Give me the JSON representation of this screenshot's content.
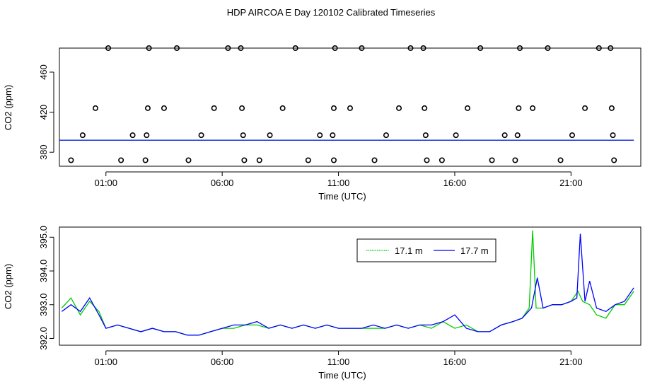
{
  "title": "HDP AIRCOA E  Day 120102  Calibrated Timeseries",
  "chart_data": [
    {
      "type": "scatter",
      "xlabel": "Time (UTC)",
      "ylabel": "CO2 (ppm)",
      "x_ticks": [
        "01:00",
        "06:00",
        "11:00",
        "16:00",
        "21:00"
      ],
      "x_tick_hours": [
        1,
        6,
        11,
        16,
        21
      ],
      "xlim": [
        -1.0,
        24.0
      ],
      "ylim": [
        366,
        484
      ],
      "y_ticks": [
        380,
        420,
        460
      ],
      "cal_points": [
        [
          -0.5,
          372
        ],
        [
          0.0,
          397
        ],
        [
          0.55,
          424
        ],
        [
          1.1,
          484
        ],
        [
          1.65,
          372
        ],
        [
          2.15,
          397
        ],
        [
          2.75,
          397
        ],
        [
          2.8,
          424
        ],
        [
          2.85,
          484
        ],
        [
          2.7,
          372
        ],
        [
          3.5,
          424
        ],
        [
          4.05,
          484
        ],
        [
          4.55,
          372
        ],
        [
          5.1,
          397
        ],
        [
          5.65,
          424
        ],
        [
          6.25,
          484
        ],
        [
          6.8,
          484
        ],
        [
          6.85,
          424
        ],
        [
          6.9,
          397
        ],
        [
          6.95,
          372
        ],
        [
          7.6,
          372
        ],
        [
          8.05,
          397
        ],
        [
          8.6,
          424
        ],
        [
          9.15,
          484
        ],
        [
          9.7,
          372
        ],
        [
          10.2,
          397
        ],
        [
          10.75,
          397
        ],
        [
          10.8,
          424
        ],
        [
          10.85,
          484
        ],
        [
          10.8,
          372
        ],
        [
          11.5,
          424
        ],
        [
          12.0,
          484
        ],
        [
          12.55,
          372
        ],
        [
          13.05,
          397
        ],
        [
          13.6,
          424
        ],
        [
          14.1,
          484
        ],
        [
          14.65,
          484
        ],
        [
          14.7,
          424
        ],
        [
          14.75,
          397
        ],
        [
          14.8,
          372
        ],
        [
          15.45,
          372
        ],
        [
          16.05,
          397
        ],
        [
          16.55,
          424
        ],
        [
          17.1,
          484
        ],
        [
          17.6,
          372
        ],
        [
          18.15,
          397
        ],
        [
          18.7,
          397
        ],
        [
          18.75,
          424
        ],
        [
          18.8,
          484
        ],
        [
          18.6,
          372
        ],
        [
          19.35,
          424
        ],
        [
          20.0,
          484
        ],
        [
          20.55,
          372
        ],
        [
          21.05,
          397
        ],
        [
          21.6,
          424
        ],
        [
          22.2,
          484
        ],
        [
          22.7,
          484
        ],
        [
          22.75,
          424
        ],
        [
          22.8,
          397
        ],
        [
          22.85,
          372
        ]
      ],
      "series": [
        {
          "name": "17.1 m",
          "color": "#00cc00"
        },
        {
          "name": "17.7 m",
          "color": "#0000ff"
        }
      ]
    },
    {
      "type": "line",
      "xlabel": "Time (UTC)",
      "ylabel": "CO2 (ppm)",
      "x_ticks": [
        "01:00",
        "06:00",
        "11:00",
        "16:00",
        "21:00"
      ],
      "x_tick_hours": [
        1,
        6,
        11,
        16,
        21
      ],
      "xlim": [
        -1.0,
        24.0
      ],
      "ylim": [
        391.8,
        395.3
      ],
      "y_ticks": [
        "392.0",
        "393.0",
        "394.0",
        "395.0"
      ],
      "y_tick_values": [
        392.0,
        393.0,
        394.0,
        395.0
      ],
      "legend_position": "top-right",
      "series": [
        {
          "name": "17.1 m",
          "color": "#00cc00",
          "x": [
            -0.9,
            -0.5,
            -0.1,
            0.3,
            0.7,
            1.0,
            1.5,
            2.0,
            2.5,
            3.0,
            3.5,
            4.0,
            4.5,
            5.0,
            5.5,
            6.0,
            6.5,
            7.0,
            7.5,
            8.0,
            8.5,
            9.0,
            9.5,
            10.0,
            10.5,
            11.0,
            11.5,
            12.0,
            12.5,
            13.0,
            13.5,
            14.0,
            14.5,
            15.0,
            15.5,
            16.0,
            16.5,
            17.0,
            17.5,
            18.0,
            18.5,
            18.9,
            19.2,
            19.35,
            19.5,
            19.8,
            20.2,
            20.6,
            21.0,
            21.3,
            21.5,
            21.8,
            22.1,
            22.5,
            22.9,
            23.3,
            23.7
          ],
          "y": [
            392.9,
            393.2,
            392.7,
            393.1,
            392.8,
            392.3,
            392.4,
            392.3,
            392.2,
            392.3,
            392.2,
            392.2,
            392.1,
            392.1,
            392.2,
            392.3,
            392.3,
            392.4,
            392.4,
            392.3,
            392.4,
            392.3,
            392.4,
            392.3,
            392.4,
            392.3,
            392.3,
            392.3,
            392.3,
            392.3,
            392.4,
            392.3,
            392.4,
            392.3,
            392.5,
            392.3,
            392.4,
            392.2,
            392.2,
            392.4,
            392.5,
            392.6,
            392.9,
            395.2,
            392.9,
            392.9,
            393.0,
            393.0,
            393.1,
            393.4,
            393.1,
            393.0,
            392.7,
            392.6,
            393.0,
            393.0,
            393.4
          ]
        },
        {
          "name": "17.7 m",
          "color": "#0000ff",
          "x": [
            -0.9,
            -0.5,
            -0.1,
            0.3,
            0.7,
            1.0,
            1.5,
            2.0,
            2.5,
            3.0,
            3.5,
            4.0,
            4.5,
            5.0,
            5.5,
            6.0,
            6.5,
            7.0,
            7.5,
            8.0,
            8.5,
            9.0,
            9.5,
            10.0,
            10.5,
            11.0,
            11.5,
            12.0,
            12.5,
            13.0,
            13.5,
            14.0,
            14.5,
            15.0,
            15.5,
            16.0,
            16.5,
            17.0,
            17.5,
            18.0,
            18.5,
            18.9,
            19.3,
            19.55,
            19.8,
            20.2,
            20.6,
            21.0,
            21.25,
            21.4,
            21.6,
            21.8,
            22.1,
            22.5,
            22.9,
            23.3,
            23.7
          ],
          "y": [
            392.8,
            393.0,
            392.8,
            393.2,
            392.7,
            392.3,
            392.4,
            392.3,
            392.2,
            392.3,
            392.2,
            392.2,
            392.1,
            392.1,
            392.2,
            392.3,
            392.4,
            392.4,
            392.5,
            392.3,
            392.4,
            392.3,
            392.4,
            392.3,
            392.4,
            392.3,
            392.3,
            392.3,
            392.4,
            392.3,
            392.4,
            392.3,
            392.4,
            392.4,
            392.5,
            392.7,
            392.3,
            392.2,
            392.2,
            392.4,
            392.5,
            392.6,
            392.9,
            393.8,
            392.9,
            393.0,
            393.0,
            393.1,
            393.2,
            395.1,
            393.1,
            393.7,
            392.9,
            392.8,
            393.0,
            393.1,
            393.5
          ]
        }
      ]
    }
  ]
}
